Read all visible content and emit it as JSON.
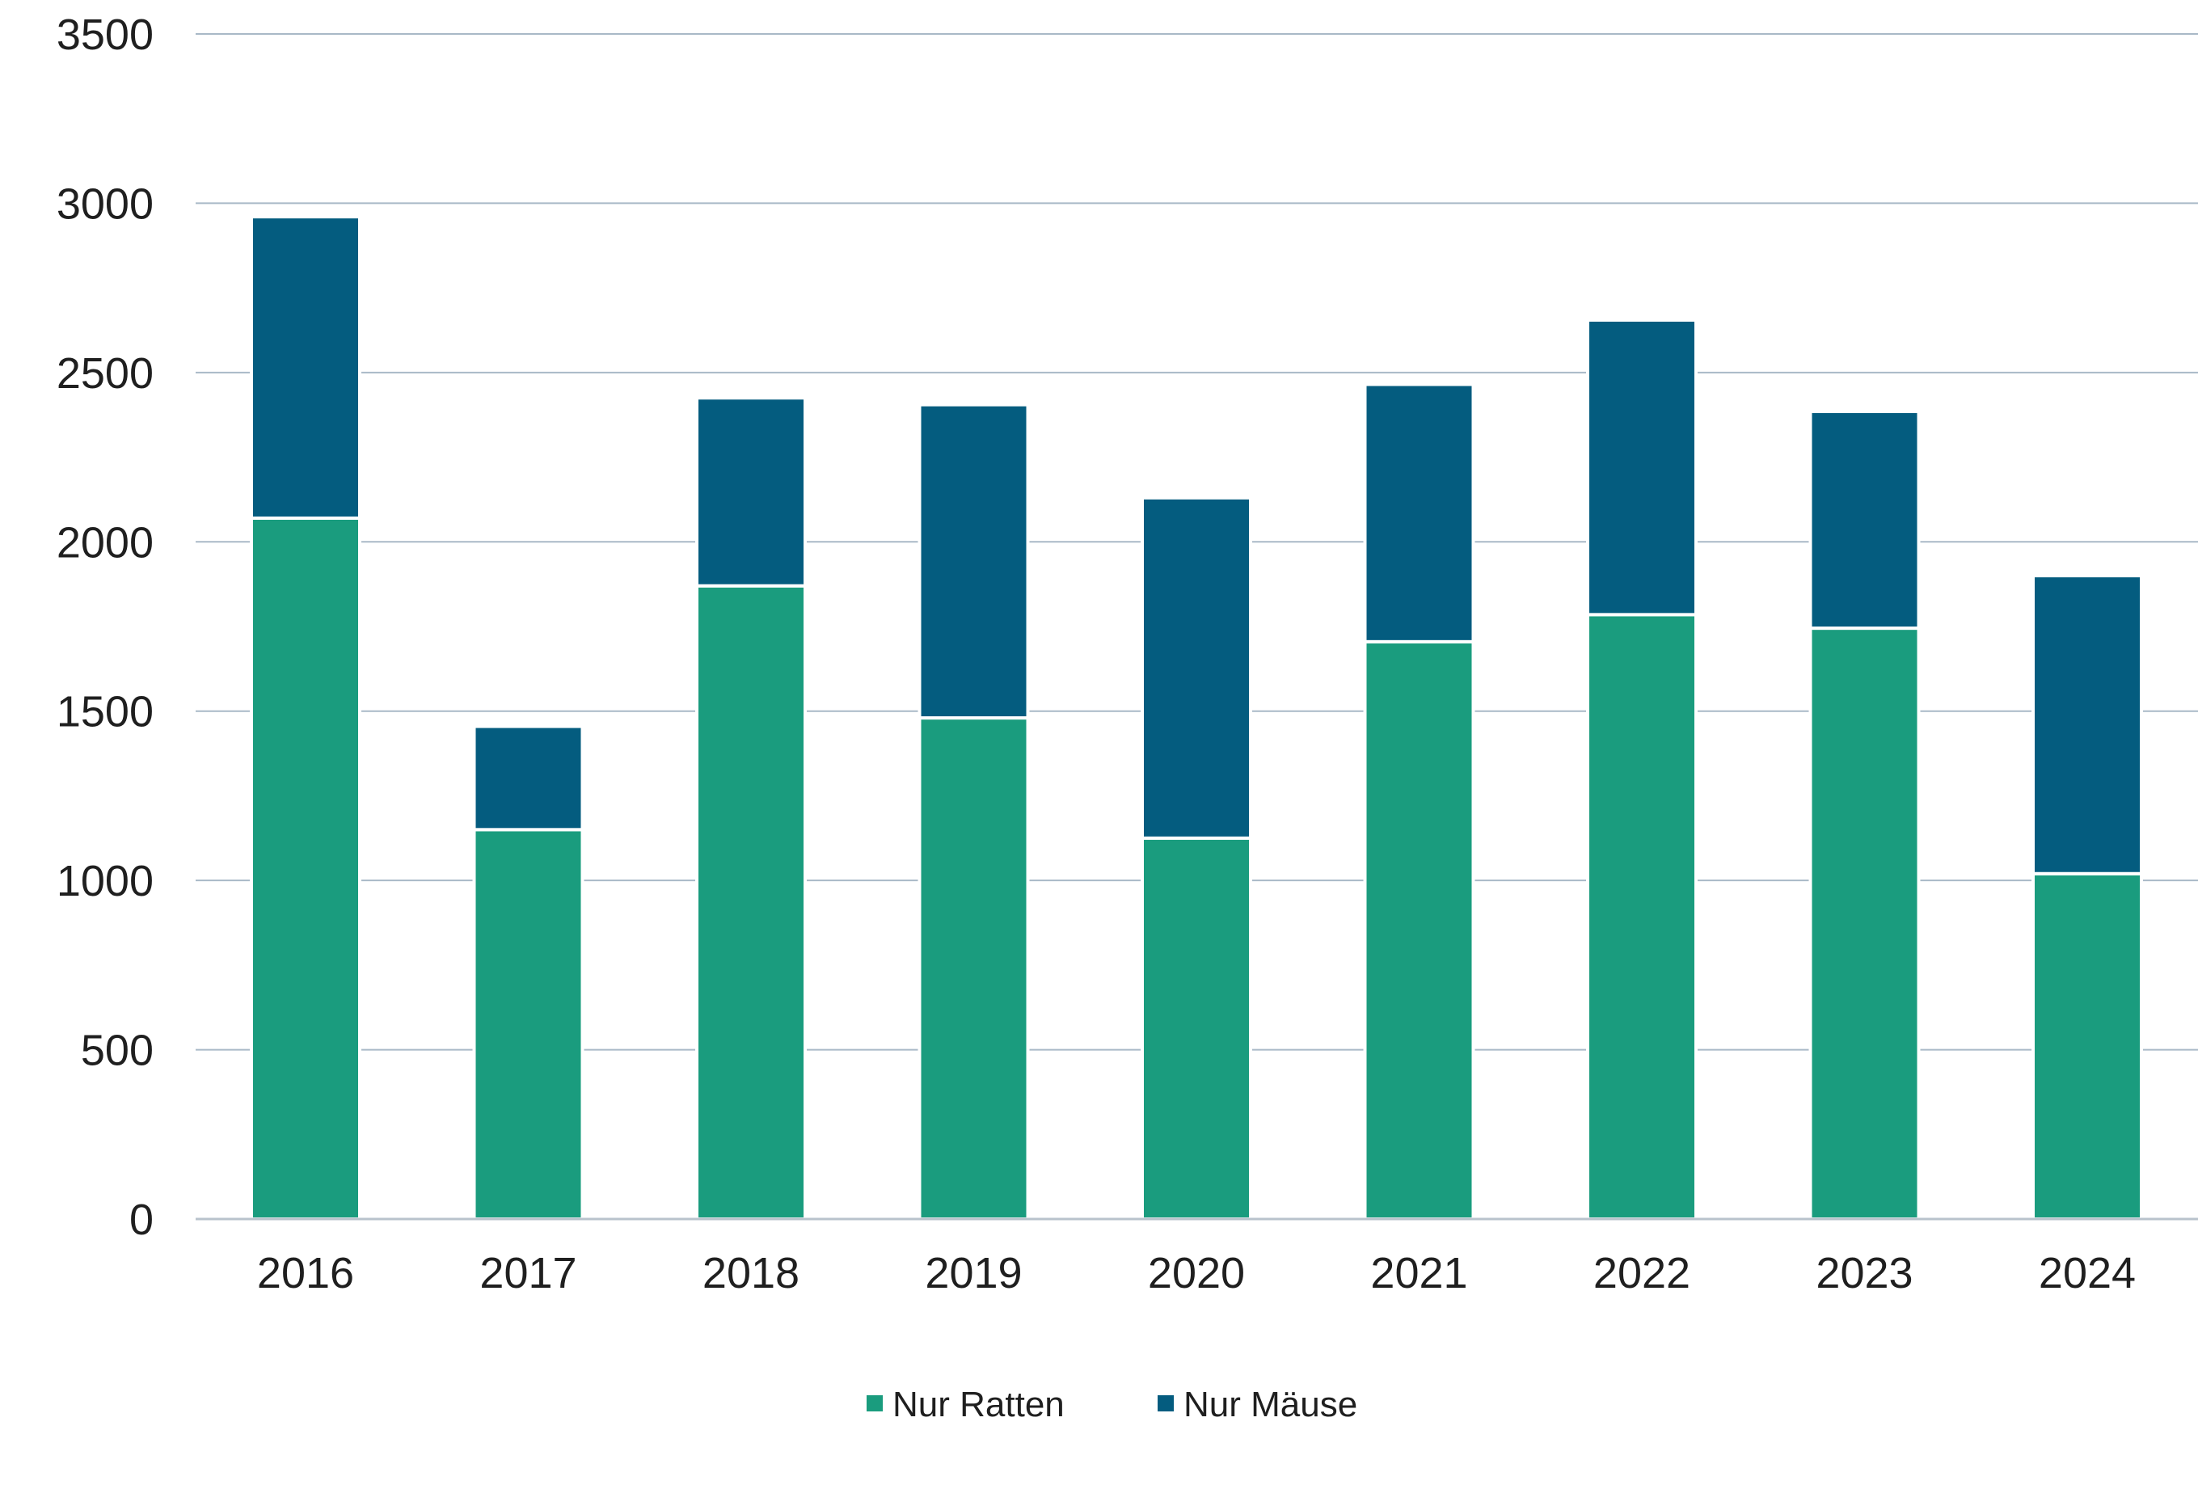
{
  "chart_data": {
    "type": "bar",
    "stacked": true,
    "title": "",
    "xlabel": "",
    "ylabel": "",
    "categories": [
      "2016",
      "2017",
      "2018",
      "2019",
      "2020",
      "2021",
      "2022",
      "2023",
      "2024"
    ],
    "series": [
      {
        "name": "Nur Ratten",
        "color": "#1a9c7e",
        "values": [
          2070,
          1150,
          1870,
          1480,
          1125,
          1705,
          1785,
          1745,
          1020
        ]
      },
      {
        "name": "Nur Mäuse",
        "color": "#045c7f",
        "values": [
          890,
          305,
          555,
          925,
          1005,
          760,
          870,
          640,
          880
        ]
      }
    ],
    "ylim": [
      0,
      3500
    ],
    "yticks": [
      "0",
      "500",
      "1000",
      "1500",
      "2000",
      "2500",
      "3000",
      "3500"
    ],
    "grid": true,
    "grid_color": "#a9b9c7",
    "legend_position": "bottom-center"
  }
}
